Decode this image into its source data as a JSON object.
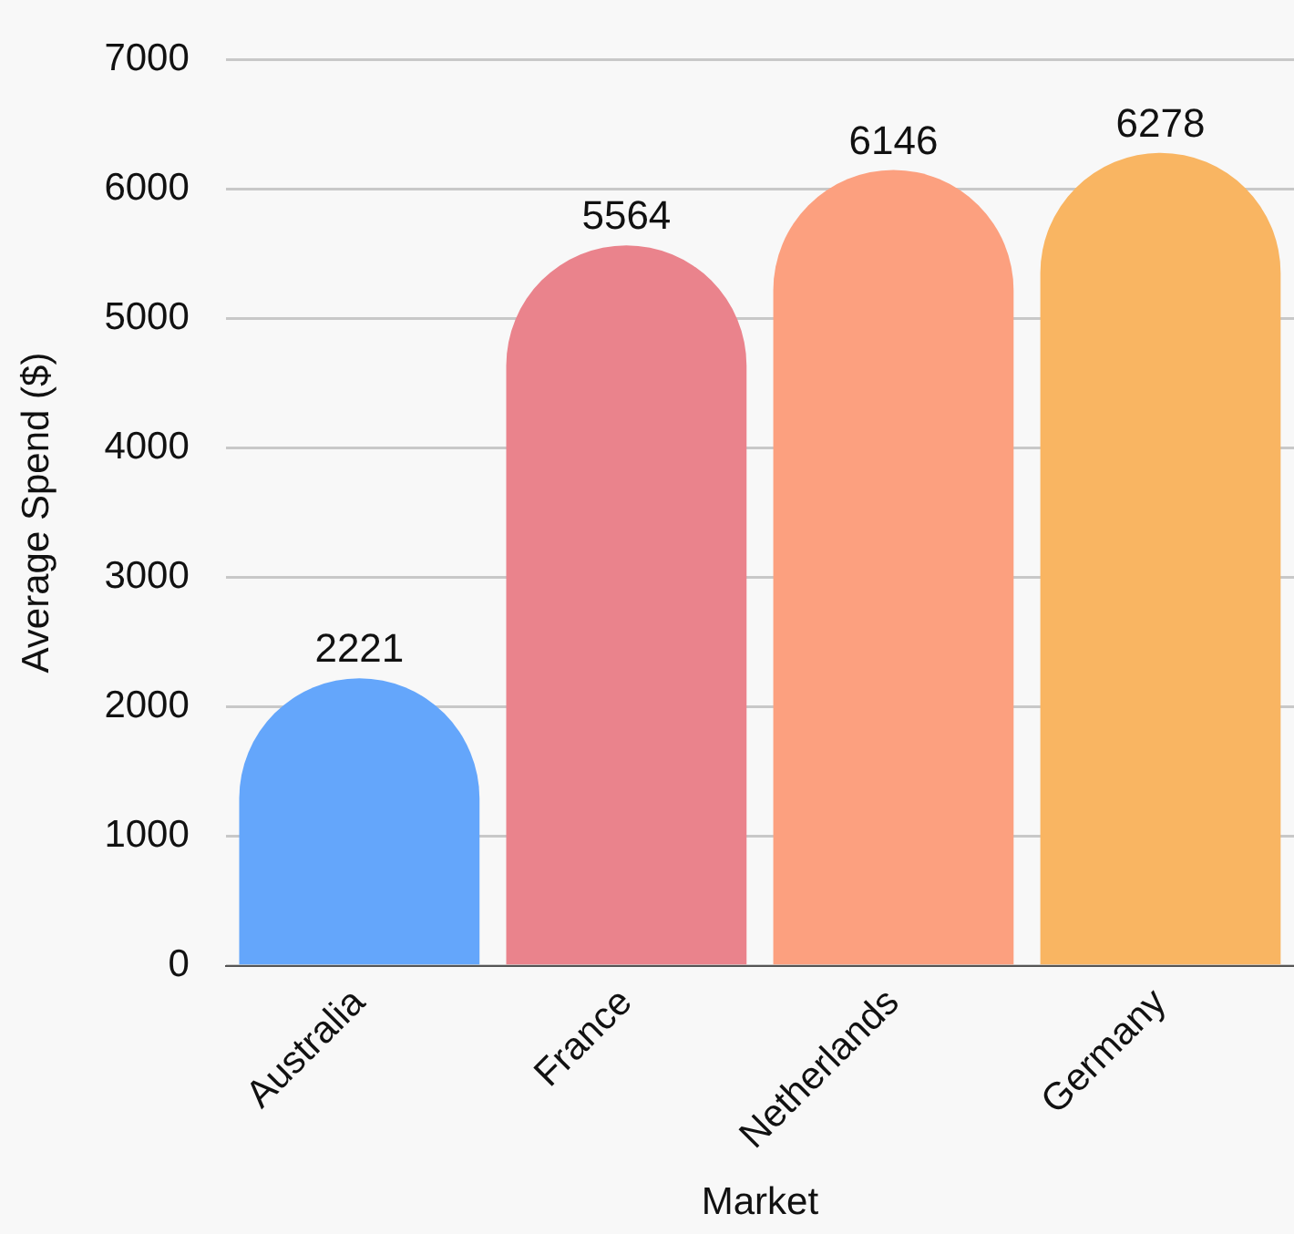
{
  "chart_data": {
    "type": "bar",
    "xlabel": "Market",
    "ylabel": "Average Spend ($)",
    "categories": [
      "Australia",
      "France",
      "Netherlands",
      "Germany"
    ],
    "values": [
      2221,
      5564,
      6146,
      6278
    ],
    "colors": [
      "#64a6fb",
      "#ea838c",
      "#fca07f",
      "#f9b562"
    ],
    "ylim": [
      0,
      7000
    ],
    "yticks": [
      0,
      1000,
      2000,
      3000,
      4000,
      5000,
      6000,
      7000
    ],
    "grid": "y",
    "legend": false,
    "data_labels": true
  }
}
